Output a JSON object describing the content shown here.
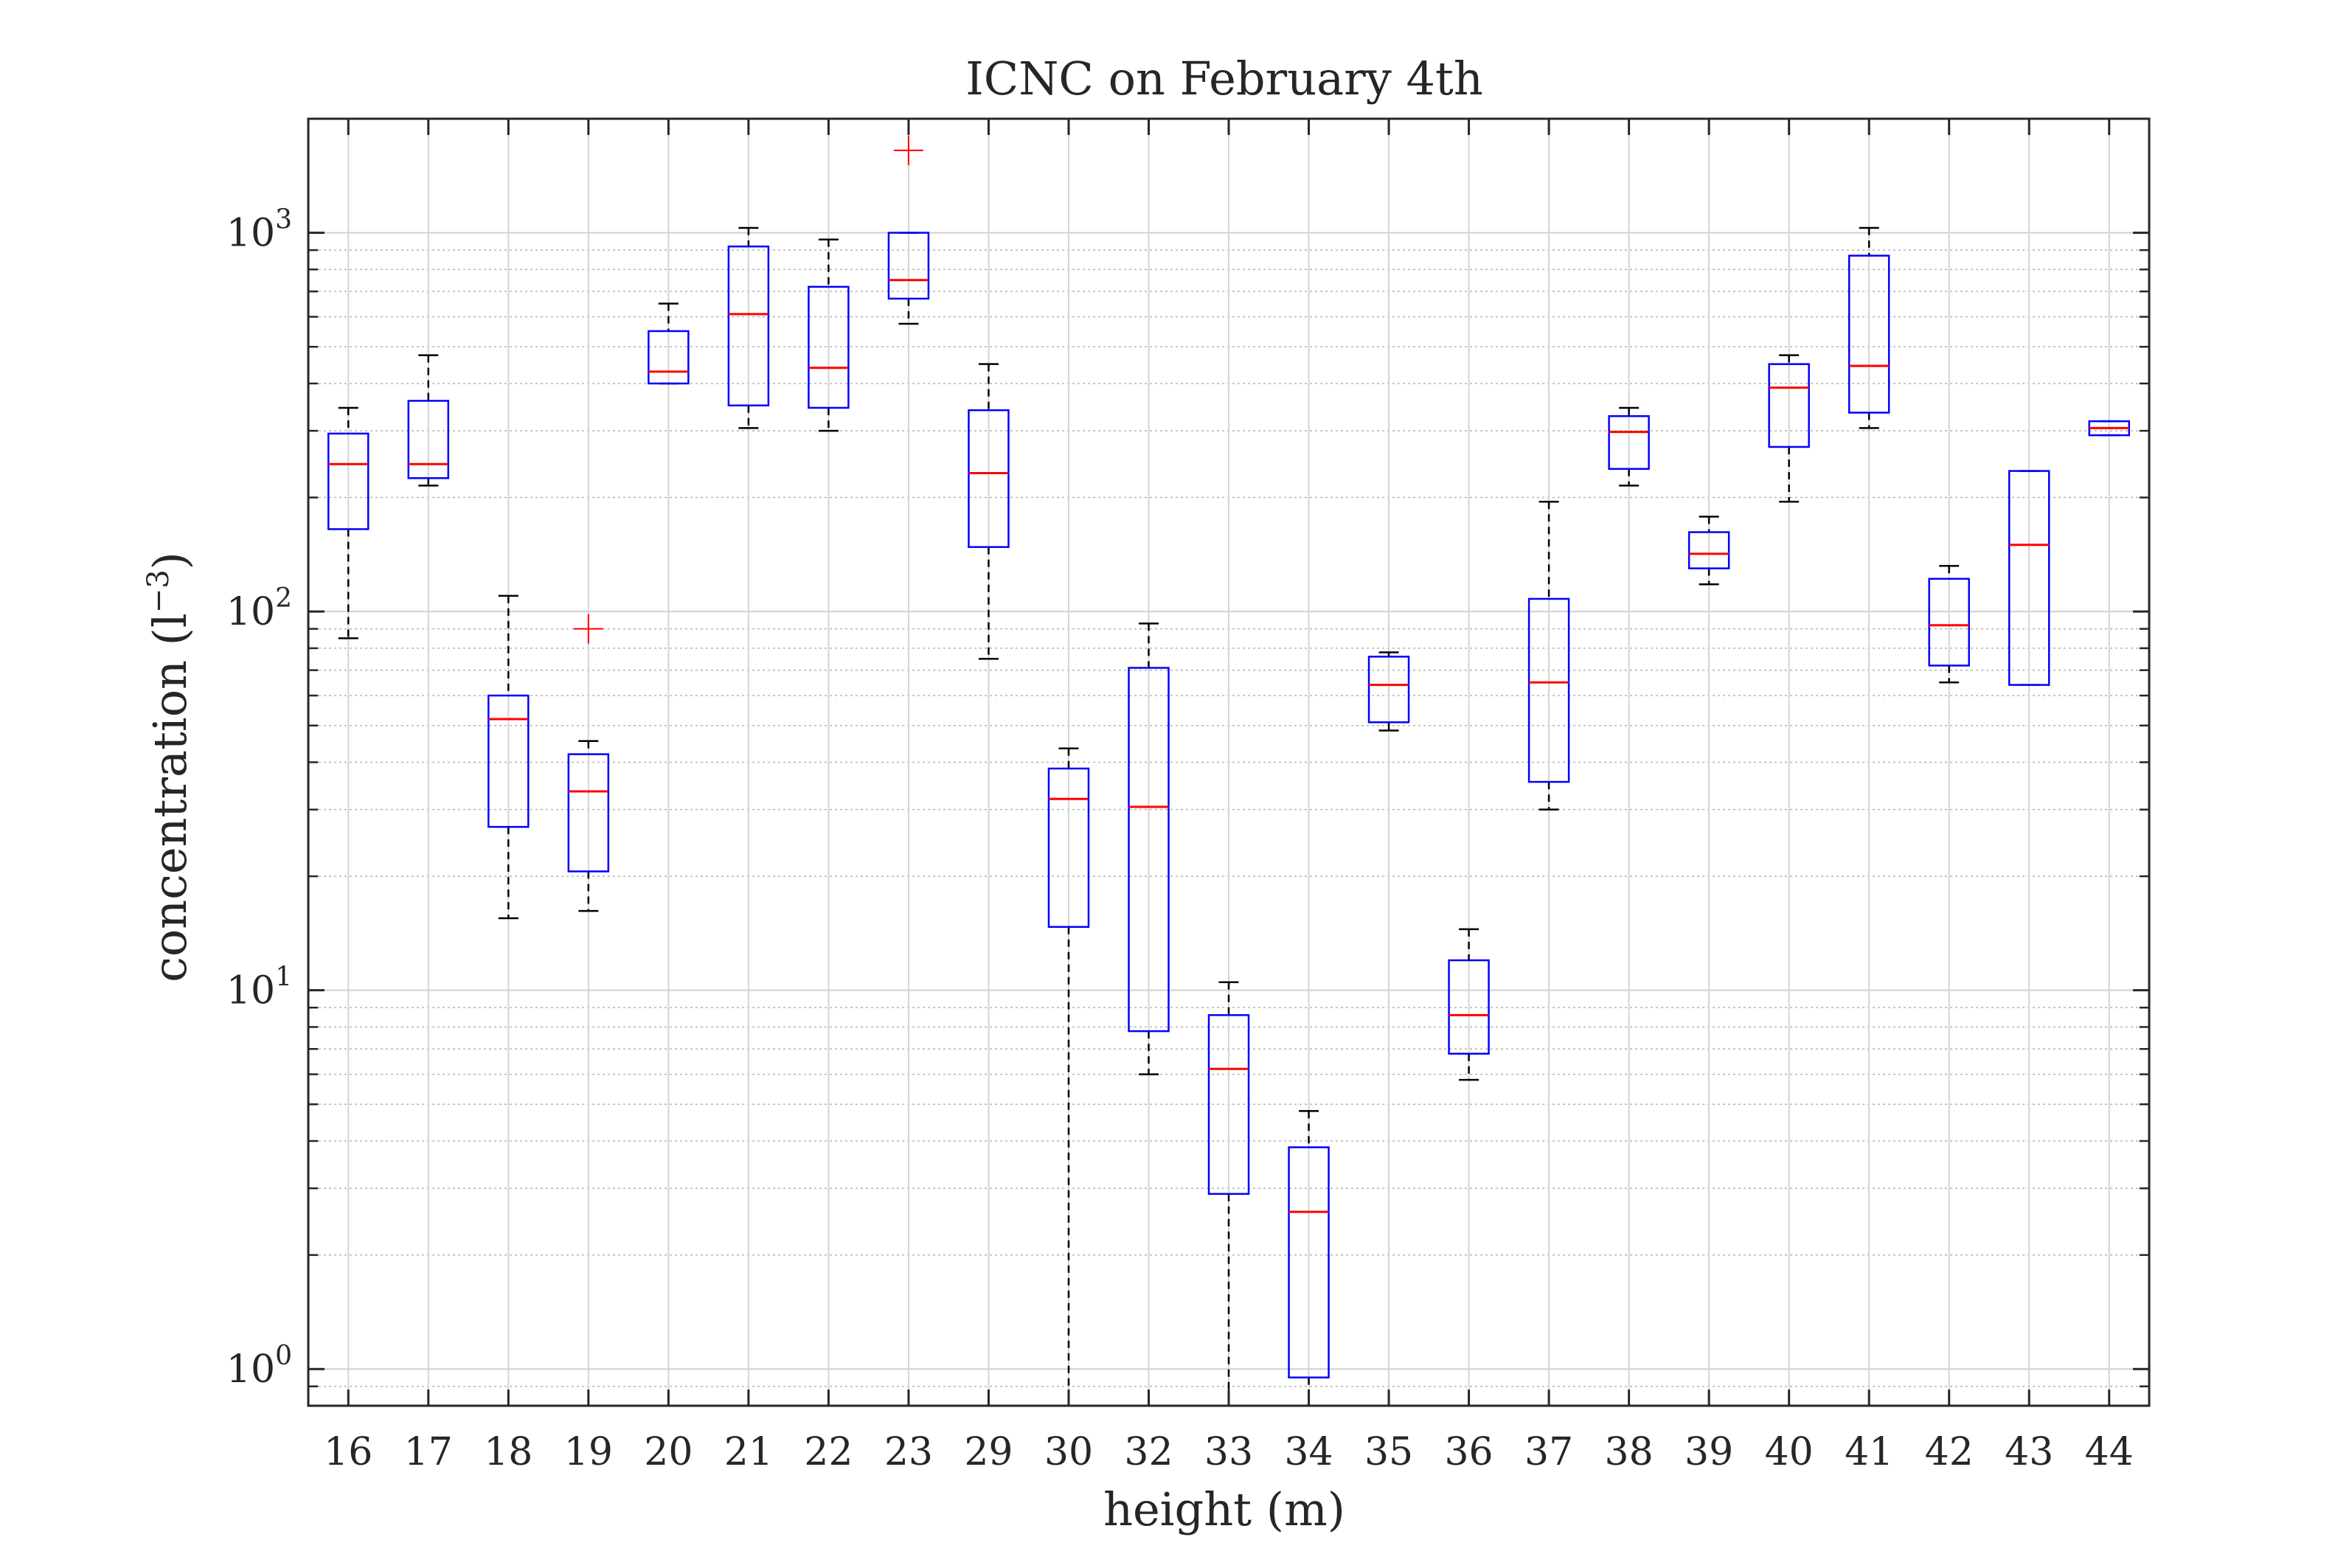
{
  "chart_data": {
    "type": "boxplot",
    "title": "ICNC on February 4th",
    "xlabel": "height (m)",
    "ylabel": "concentration (l",
    "ylabel_exp": "−3",
    "ylabel_close": ")",
    "yscale": "log",
    "ylim": [
      0.8,
      2000
    ],
    "yticks": [
      {
        "value": 1,
        "base": "10",
        "exp": "0"
      },
      {
        "value": 10,
        "base": "10",
        "exp": "1"
      },
      {
        "value": 100,
        "base": "10",
        "exp": "2"
      },
      {
        "value": 1000,
        "base": "10",
        "exp": "3"
      }
    ],
    "grid": true,
    "colors": {
      "box": "#0000ff",
      "median": "#ff0000",
      "whisker": "#000000",
      "outlier": "#ff0000"
    },
    "categories": [
      "16",
      "17",
      "18",
      "19",
      "20",
      "21",
      "22",
      "23",
      "29",
      "30",
      "32",
      "33",
      "34",
      "35",
      "36",
      "37",
      "38",
      "39",
      "40",
      "41",
      "42",
      "43",
      "44"
    ],
    "boxes": [
      {
        "whislo": 85,
        "q1": 165,
        "med": 245,
        "q3": 295,
        "whishi": 345,
        "fliers": []
      },
      {
        "whislo": 215,
        "q1": 225,
        "med": 245,
        "q3": 360,
        "whishi": 475,
        "fliers": []
      },
      {
        "whislo": 15.5,
        "q1": 27,
        "med": 52,
        "q3": 60,
        "whishi": 110,
        "fliers": []
      },
      {
        "whislo": 16.2,
        "q1": 20.6,
        "med": 33.5,
        "q3": 42,
        "whishi": 45.5,
        "fliers": [
          90
        ]
      },
      {
        "whislo": 400,
        "q1": 400,
        "med": 430,
        "q3": 550,
        "whishi": 650,
        "fliers": []
      },
      {
        "whislo": 305,
        "q1": 350,
        "med": 610,
        "q3": 920,
        "whishi": 1030,
        "fliers": []
      },
      {
        "whislo": 300,
        "q1": 345,
        "med": 440,
        "q3": 720,
        "whishi": 960,
        "fliers": []
      },
      {
        "whislo": 575,
        "q1": 670,
        "med": 750,
        "q3": 1000,
        "whishi": 1000,
        "fliers": [
          1650
        ]
      },
      {
        "whislo": 75,
        "q1": 148,
        "med": 232,
        "q3": 340,
        "whishi": 450,
        "fliers": []
      },
      {
        "whislo": 0.8,
        "q1": 14.7,
        "med": 32,
        "q3": 38.5,
        "whishi": 43.5,
        "fliers": []
      },
      {
        "whislo": 6.0,
        "q1": 7.8,
        "med": 30.5,
        "q3": 71,
        "whishi": 93,
        "fliers": []
      },
      {
        "whislo": 0.8,
        "q1": 2.9,
        "med": 6.2,
        "q3": 8.6,
        "whishi": 10.5,
        "fliers": []
      },
      {
        "whislo": 0.8,
        "q1": 0.95,
        "med": 2.6,
        "q3": 3.85,
        "whishi": 4.8,
        "fliers": []
      },
      {
        "whislo": 48.5,
        "q1": 51,
        "med": 64,
        "q3": 76,
        "whishi": 78,
        "fliers": []
      },
      {
        "whislo": 5.8,
        "q1": 6.8,
        "med": 8.6,
        "q3": 12,
        "whishi": 14.5,
        "fliers": []
      },
      {
        "whislo": 30,
        "q1": 35.5,
        "med": 65,
        "q3": 108,
        "whishi": 195,
        "fliers": []
      },
      {
        "whislo": 215,
        "q1": 238,
        "med": 298,
        "q3": 328,
        "whishi": 345,
        "fliers": []
      },
      {
        "whislo": 118,
        "q1": 130,
        "med": 142,
        "q3": 162,
        "whishi": 178,
        "fliers": []
      },
      {
        "whislo": 195,
        "q1": 272,
        "med": 390,
        "q3": 450,
        "whishi": 475,
        "fliers": []
      },
      {
        "whislo": 305,
        "q1": 335,
        "med": 445,
        "q3": 870,
        "whishi": 1030,
        "fliers": []
      },
      {
        "whislo": 65,
        "q1": 72,
        "med": 92,
        "q3": 122,
        "whishi": 132,
        "fliers": []
      },
      {
        "whislo": 64,
        "q1": 64,
        "med": 150,
        "q3": 235,
        "whishi": 235,
        "fliers": []
      },
      {
        "whislo": 292,
        "q1": 292,
        "med": 305,
        "q3": 318,
        "whishi": 318,
        "fliers": []
      }
    ]
  }
}
